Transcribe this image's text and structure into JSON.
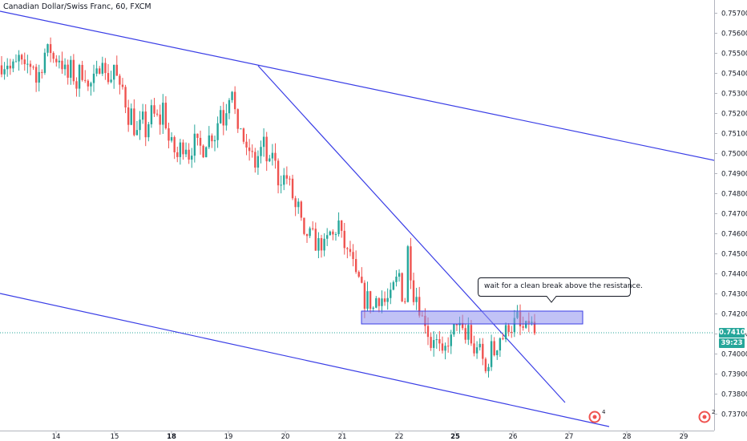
{
  "title": "Canadian Dollar/Swiss Franc, 60, FXCM",
  "chart_data": {
    "type": "candlestick",
    "title": "Canadian Dollar/Swiss Franc, 60, FXCM",
    "y_ticks": [
      "0.75700",
      "0.75600",
      "0.75500",
      "0.75400",
      "0.75300",
      "0.75200",
      "0.75100",
      "0.75000",
      "0.74900",
      "0.74800",
      "0.74700",
      "0.74600",
      "0.74500",
      "0.74400",
      "0.74300",
      "0.74200",
      "0.74100",
      "0.74000",
      "0.73900",
      "0.73800",
      "0.73700"
    ],
    "ylim": [
      0.73675,
      0.7579
    ],
    "x_ticks": [
      {
        "label": "14",
        "bold": false
      },
      {
        "label": "15",
        "bold": false
      },
      {
        "label": "18",
        "bold": true
      },
      {
        "label": "19",
        "bold": false
      },
      {
        "label": "20",
        "bold": false
      },
      {
        "label": "21",
        "bold": false
      },
      {
        "label": "22",
        "bold": false
      },
      {
        "label": "25",
        "bold": true
      },
      {
        "label": "26",
        "bold": false
      },
      {
        "label": "27",
        "bold": false
      },
      {
        "label": "28",
        "bold": false
      },
      {
        "label": "29",
        "bold": false
      }
    ],
    "bull_color": "#26a69a",
    "bear_color": "#ef5350",
    "price_path": [
      [
        0.7544,
        0.7545
      ],
      [
        0.7542,
        0.7546
      ],
      [
        0.7548,
        0.7545
      ],
      [
        0.7544,
        0.7538
      ],
      [
        0.7535,
        0.7545
      ],
      [
        0.755,
        0.7547
      ],
      [
        0.7547,
        0.7552
      ],
      [
        0.7546,
        0.7548
      ],
      [
        0.7545,
        0.7536
      ],
      [
        0.7541,
        0.7532
      ],
      [
        0.7531,
        0.754
      ],
      [
        0.7535,
        0.7537
      ],
      [
        0.7538,
        0.7551
      ],
      [
        0.755,
        0.7538
      ],
      [
        0.7539,
        0.753
      ],
      [
        0.7528,
        0.7518
      ],
      [
        0.751,
        0.7505
      ],
      [
        0.751,
        0.752
      ],
      [
        0.7519,
        0.7525
      ],
      [
        0.7526,
        0.7515
      ],
      [
        0.7505,
        0.75
      ],
      [
        0.7503,
        0.7496
      ],
      [
        0.7498,
        0.7505
      ],
      [
        0.7504,
        0.7508
      ],
      [
        0.7506,
        0.7502
      ],
      [
        0.7505,
        0.751
      ],
      [
        0.7512,
        0.7525
      ],
      [
        0.7543,
        0.7532
      ],
      [
        0.752,
        0.7505
      ],
      [
        0.7505,
        0.7498
      ],
      [
        0.7496,
        0.7494
      ],
      [
        0.75,
        0.7505
      ],
      [
        0.7502,
        0.749
      ],
      [
        0.7488,
        0.748
      ],
      [
        0.7485,
        0.7488
      ],
      [
        0.7475,
        0.7468
      ],
      [
        0.746,
        0.745
      ],
      [
        0.7455,
        0.7458
      ],
      [
        0.7452,
        0.7455
      ],
      [
        0.7457,
        0.7462
      ],
      [
        0.746,
        0.7467
      ],
      [
        0.7455,
        0.7448
      ],
      [
        0.744,
        0.7435
      ],
      [
        0.743,
        0.7425
      ],
      [
        0.7428,
        0.7422
      ],
      [
        0.7425,
        0.7428
      ],
      [
        0.743,
        0.7428
      ],
      [
        0.7432,
        0.744
      ],
      [
        0.7453,
        0.7425
      ],
      [
        0.743,
        0.742
      ],
      [
        0.7418,
        0.7413
      ],
      [
        0.741,
        0.74
      ],
      [
        0.7396,
        0.74
      ],
      [
        0.7405,
        0.741
      ],
      [
        0.7414,
        0.742
      ],
      [
        0.7418,
        0.7405
      ],
      [
        0.7408,
        0.7395
      ],
      [
        0.7387,
        0.7395
      ],
      [
        0.7398,
        0.7405
      ],
      [
        0.7406,
        0.741
      ],
      [
        0.7412,
        0.7415
      ],
      [
        0.7413,
        0.7418
      ],
      [
        0.742,
        0.7412
      ],
      [
        0.741,
        0.7411
      ]
    ],
    "last_price": "0.74106",
    "countdown": "39:23",
    "annotation": "wait for a clean break above the resistance.",
    "flags": [
      {
        "label": "4"
      },
      {
        "label": "2"
      }
    ]
  },
  "colors": {
    "trendline": "#3a3ee6",
    "zone_fill": "#8e90ef",
    "zone_stroke": "#3a3ee6",
    "badge_green": "#26a69a",
    "flag_red": "#ef5350",
    "current_price_line": "#26a69a"
  }
}
